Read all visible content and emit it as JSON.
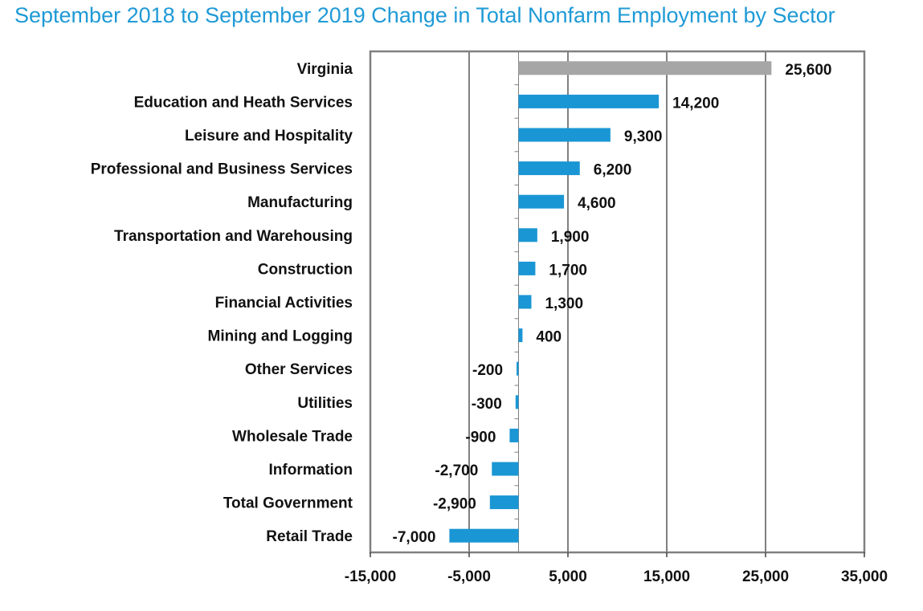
{
  "chart_data": {
    "type": "bar",
    "orientation": "horizontal",
    "title": "September 2018 to September 2019 Change in Total Nonfarm Employment by Sector",
    "categories": [
      "Virginia",
      "Education and Heath Services",
      "Leisure and Hospitality",
      "Professional and Business Services",
      "Manufacturing",
      "Transportation and Warehousing",
      "Construction",
      "Financial Activities",
      "Mining and Logging",
      "Other Services",
      "Utilities",
      "Wholesale Trade",
      "Information",
      "Total Government",
      "Retail Trade"
    ],
    "values": [
      25600,
      14200,
      9300,
      6200,
      4600,
      1900,
      1700,
      1300,
      400,
      -200,
      -300,
      -900,
      -2700,
      -2900,
      -7000
    ],
    "value_labels": [
      "25,600",
      "14,200",
      "9,300",
      "6,200",
      "4,600",
      "1,900",
      "1,700",
      "1,300",
      "400",
      "-200",
      "-300",
      "-900",
      "-2,700",
      "-2,900",
      "-7,000"
    ],
    "xlim": [
      -15000,
      35000
    ],
    "xticks": [
      -15000,
      -5000,
      5000,
      15000,
      25000,
      35000
    ],
    "xtick_labels": [
      "-15,000",
      "-5,000",
      "5,000",
      "15,000",
      "25,000",
      "35,000"
    ],
    "xlabel": "",
    "ylabel": "",
    "grid": "vertical",
    "legend": "none",
    "colors": {
      "highlight": "#a6a6a6",
      "bar": "#1a96d4",
      "title": "#1f9ad6",
      "frame": "#808080",
      "grid": "#000000"
    }
  }
}
